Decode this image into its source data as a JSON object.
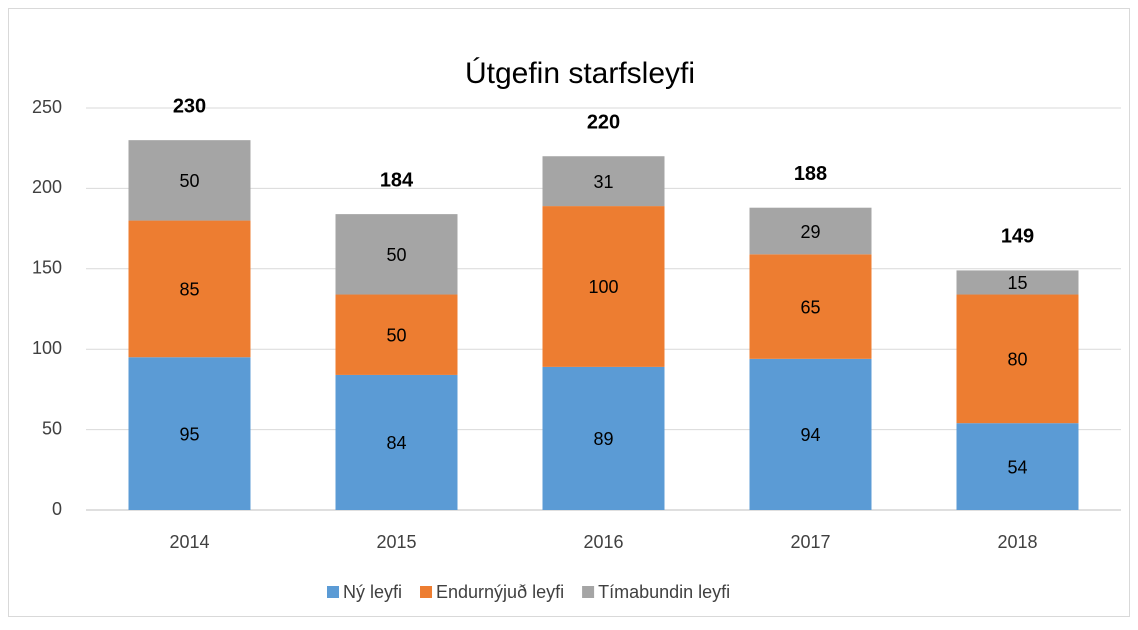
{
  "chart_data": {
    "type": "stacked_bar",
    "title": "Útgefin starfsleyfi",
    "categories": [
      "2014",
      "2015",
      "2016",
      "2017",
      "2018"
    ],
    "series": [
      {
        "name": "Ný leyfi",
        "color": "#5b9bd5",
        "values": [
          95,
          84,
          89,
          94,
          54
        ]
      },
      {
        "name": "Endurnýjuð leyfi",
        "color": "#ed7d31",
        "values": [
          85,
          50,
          100,
          65,
          80
        ]
      },
      {
        "name": "Tímabundin leyfi",
        "color": "#a5a5a5",
        "values": [
          50,
          50,
          31,
          29,
          15
        ]
      }
    ],
    "totals": [
      230,
      184,
      220,
      188,
      149
    ],
    "ylim": [
      0,
      250
    ],
    "yticks": [
      0,
      50,
      100,
      150,
      200,
      250
    ],
    "grid": true,
    "legend": "bottom"
  }
}
